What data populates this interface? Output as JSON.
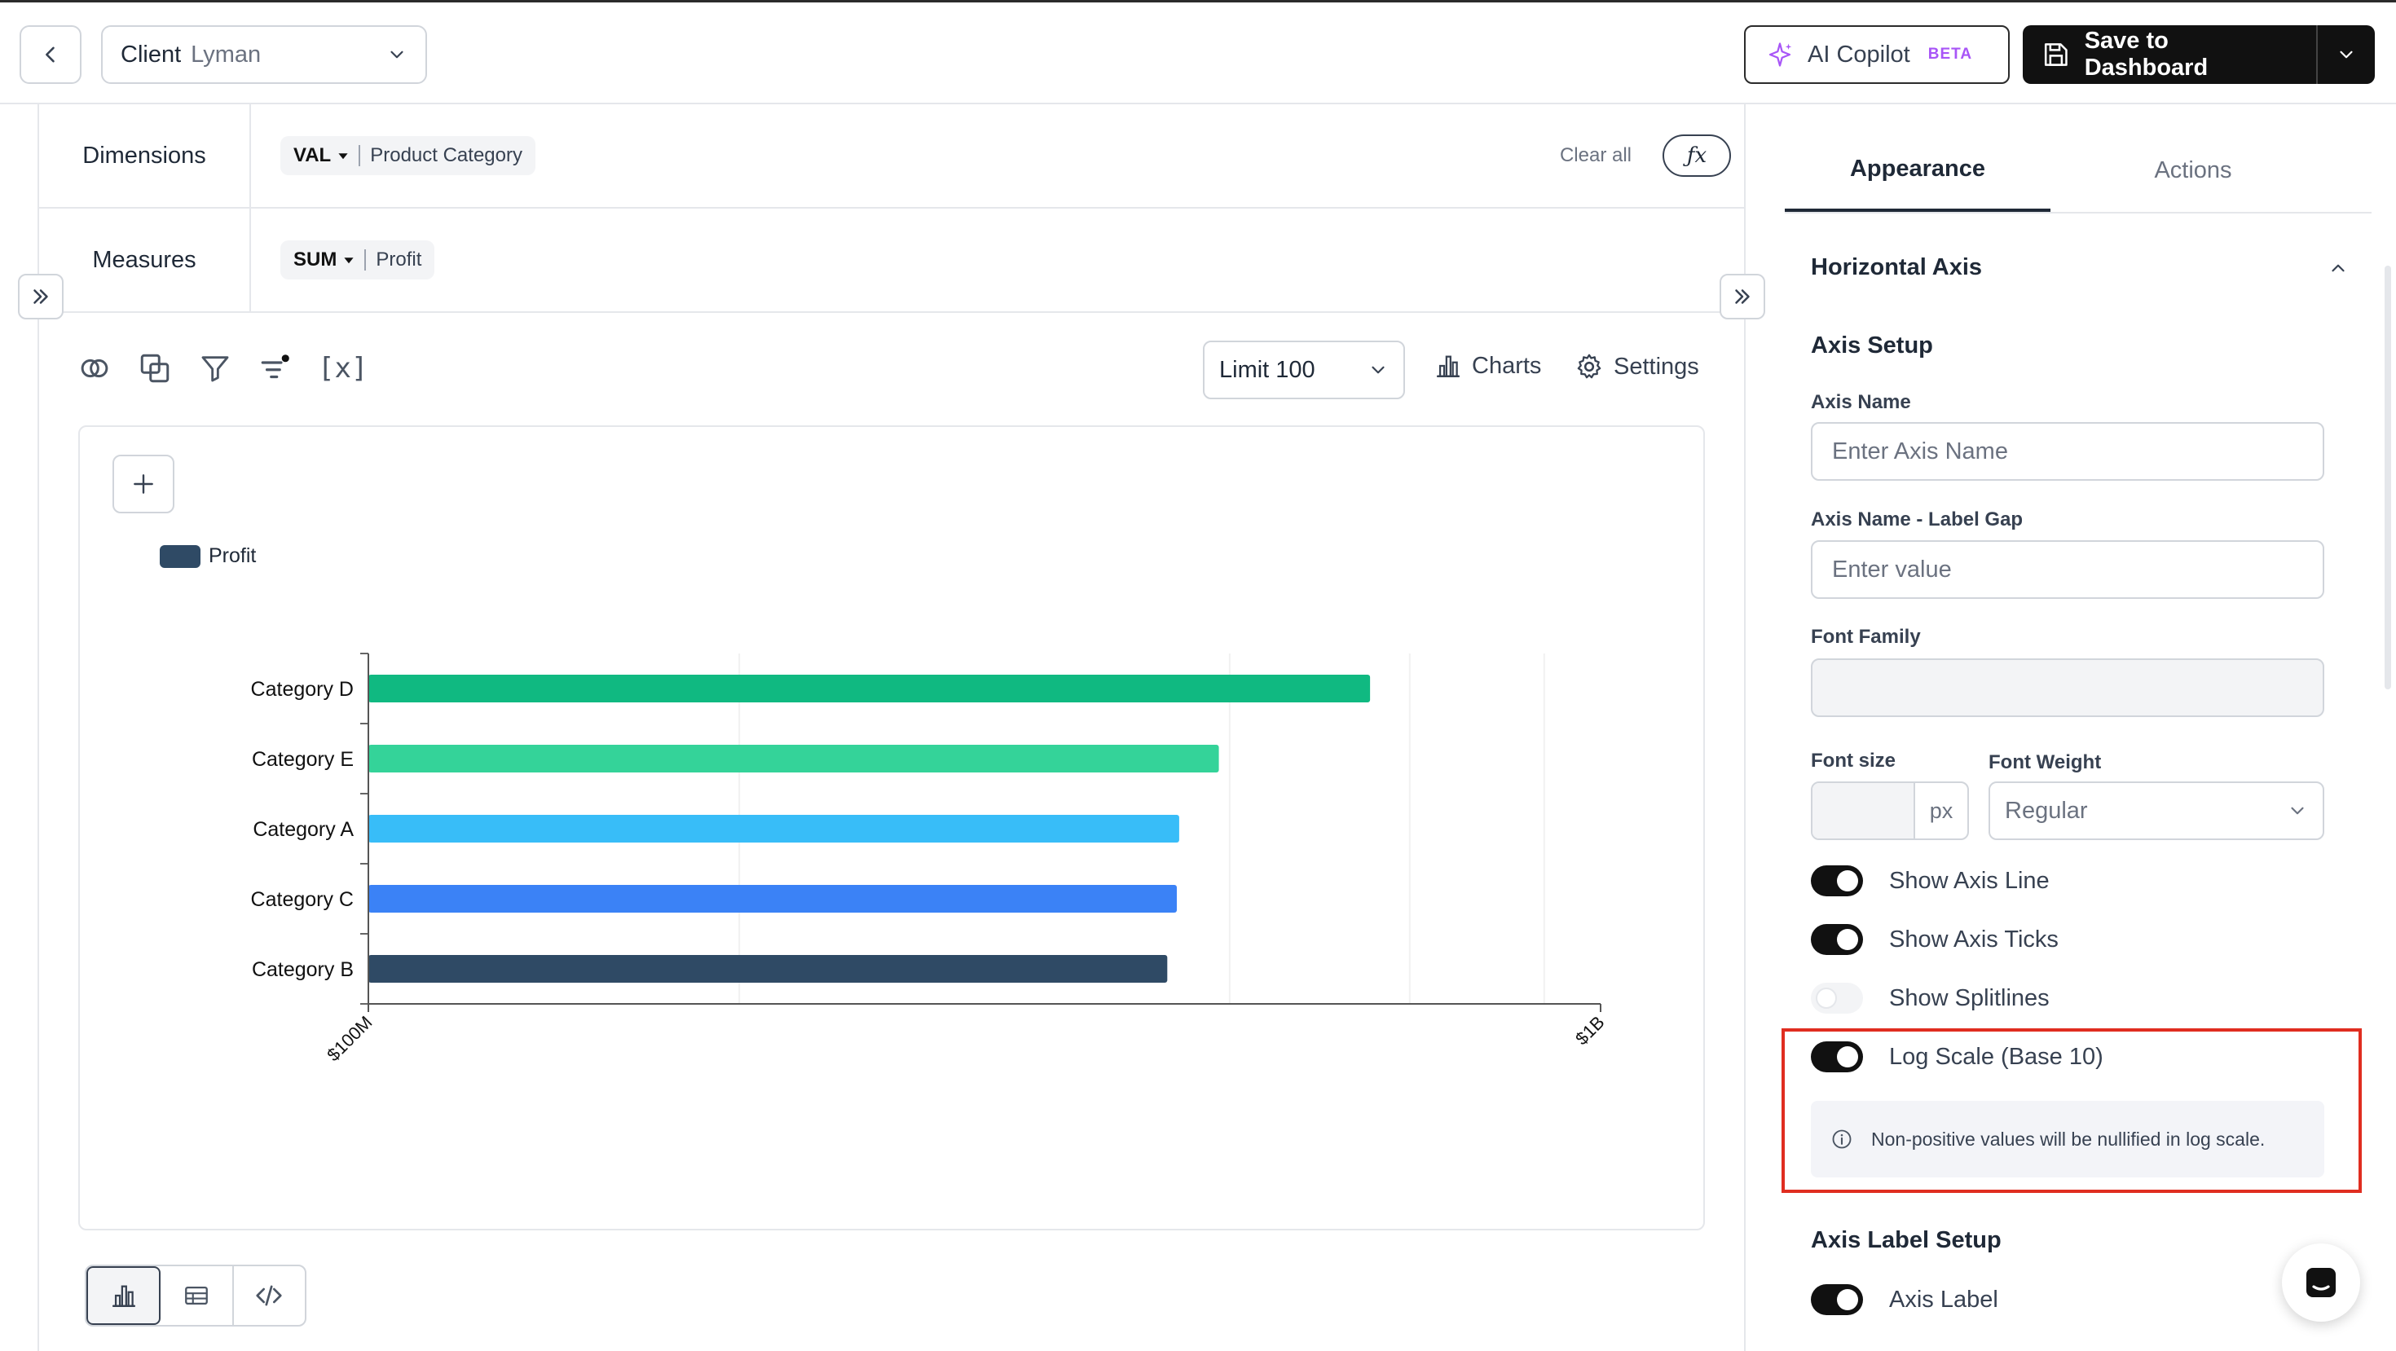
{
  "topbar": {
    "client_label": "Client",
    "client_value": "Lyman",
    "copilot_label": "AI Copilot",
    "copilot_badge": "BETA",
    "save_label": "Save to Dashboard"
  },
  "shelves": {
    "dimensions_label": "Dimensions",
    "dimension_pill": {
      "agg": "VAL",
      "field": "Product Category"
    },
    "clear_all": "Clear all",
    "fx_label": "ƒx",
    "measures_label": "Measures",
    "measure_pill": {
      "agg": "SUM",
      "field": "Profit"
    }
  },
  "toolbar": {
    "variable_icon_text": "[x]",
    "limit_label": "Limit 100",
    "charts_label": "Charts",
    "settings_label": "Settings"
  },
  "chart_data": {
    "type": "bar",
    "orientation": "horizontal",
    "xscale": "log",
    "categories": [
      "Category D",
      "Category E",
      "Category A",
      "Category C",
      "Category B"
    ],
    "series": [
      {
        "name": "Profit",
        "values": [
          650000000,
          490000000,
          455000000,
          453000000,
          445000000
        ]
      }
    ],
    "colors": [
      "#10b981",
      "#34d399",
      "#38bdf8",
      "#3b82f6",
      "#2f4a65"
    ],
    "legend_color": "#2f4a65",
    "xlim": [
      100000000,
      1000000000
    ],
    "xticks": [
      "$100M",
      "$1B"
    ],
    "grid": true,
    "legend": "top-left"
  },
  "right_panel": {
    "tabs": [
      "Appearance",
      "Actions"
    ],
    "section_title": "Horizontal Axis",
    "axis_setup_title": "Axis Setup",
    "axis_name_label": "Axis Name",
    "axis_name_placeholder": "Enter Axis Name",
    "label_gap_label": "Axis Name - Label Gap",
    "label_gap_placeholder": "Enter value",
    "font_family_label": "Font Family",
    "font_size_label": "Font size",
    "font_size_unit": "px",
    "font_weight_label": "Font Weight",
    "font_weight_value": "Regular",
    "toggles": [
      {
        "label": "Show Axis Line",
        "on": true
      },
      {
        "label": "Show Axis Ticks",
        "on": true
      },
      {
        "label": "Show Splitlines",
        "on": false
      },
      {
        "label": "Log Scale (Base 10)",
        "on": true
      }
    ],
    "log_info": "Non-positive values will be nullified in log scale.",
    "axis_label_setup_title": "Axis Label Setup",
    "axis_label_toggle": "Axis Label"
  }
}
